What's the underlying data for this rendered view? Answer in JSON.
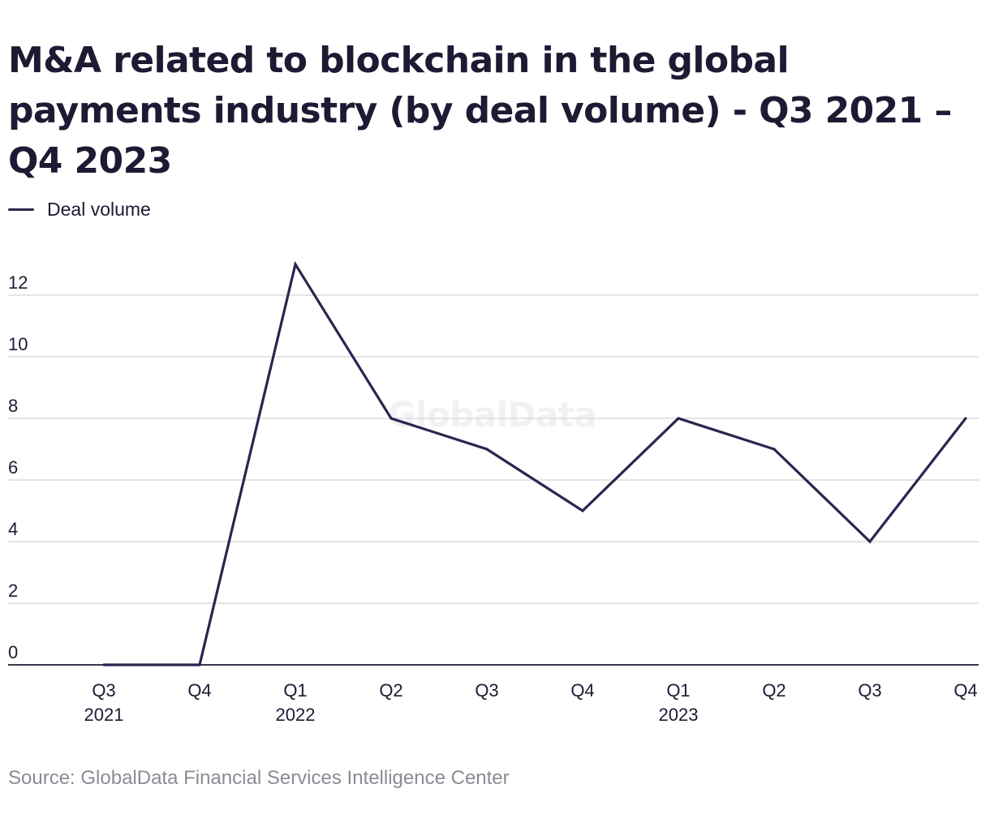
{
  "title": "M&A related to blockchain in the global payments industry (by deal volume) - Q3 2021 – Q4 2023",
  "source": "Source: GlobalData Financial Services Intelligence Center",
  "watermark": "GlobalData",
  "colors": {
    "series": "#2f2350",
    "grid": "#dcdcdc",
    "axis": "#1c1b33",
    "text": "#1c1b33",
    "source_text": "#8b8b95"
  },
  "chart_data": {
    "type": "line",
    "title": "M&A related to blockchain in the global payments industry (by deal volume) - Q3 2021 – Q4 2023",
    "xlabel": "",
    "ylabel": "",
    "categories": [
      {
        "quarter": "Q3",
        "year": "2021"
      },
      {
        "quarter": "Q4",
        "year": ""
      },
      {
        "quarter": "Q1",
        "year": "2022"
      },
      {
        "quarter": "Q2",
        "year": ""
      },
      {
        "quarter": "Q3",
        "year": ""
      },
      {
        "quarter": "Q4",
        "year": ""
      },
      {
        "quarter": "Q1",
        "year": "2023"
      },
      {
        "quarter": "Q2",
        "year": ""
      },
      {
        "quarter": "Q3",
        "year": ""
      },
      {
        "quarter": "Q4",
        "year": ""
      }
    ],
    "series": [
      {
        "name": "Deal volume",
        "values": [
          0,
          0,
          13,
          8,
          7,
          5,
          8,
          7,
          4,
          8
        ]
      }
    ],
    "ylim": [
      0,
      13
    ],
    "yticks": [
      0,
      2,
      4,
      6,
      8,
      10,
      12
    ],
    "grid": true,
    "legend": "top-left"
  }
}
